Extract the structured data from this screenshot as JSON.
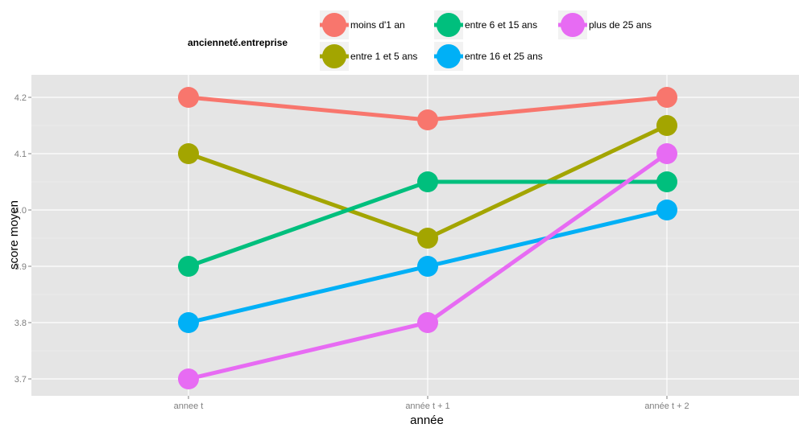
{
  "chart_data": {
    "type": "line",
    "title": "",
    "xlabel": "année",
    "ylabel": "score moyen",
    "categories": [
      "annee t",
      "année t + 1",
      "année t + 2"
    ],
    "ylim": [
      3.67,
      4.24
    ],
    "yticks": [
      3.7,
      3.8,
      3.9,
      4.0,
      4.1,
      4.2
    ],
    "ytick_labels": [
      "3.7",
      "3.8",
      "3.9",
      "4.0",
      "4.1",
      "4.2"
    ],
    "grid": true,
    "panel_background": "#e5e5e5",
    "legend": {
      "title": "ancienneté.entreprise",
      "placement": "top"
    },
    "series": [
      {
        "name": "moins d'1 an",
        "color": "#f8766d",
        "values": [
          4.2,
          4.16,
          4.2
        ]
      },
      {
        "name": "entre 1 et 5 ans",
        "color": "#a3a500",
        "values": [
          4.1,
          3.95,
          4.15
        ]
      },
      {
        "name": "entre 6 et 15 ans",
        "color": "#00bf7d",
        "values": [
          3.9,
          4.05,
          4.05
        ]
      },
      {
        "name": "entre 16 et 25 ans",
        "color": "#00b0f6",
        "values": [
          3.8,
          3.9,
          4.0
        ]
      },
      {
        "name": "plus de 25 ans",
        "color": "#e76bf3",
        "values": [
          3.7,
          3.8,
          4.1
        ]
      }
    ]
  }
}
